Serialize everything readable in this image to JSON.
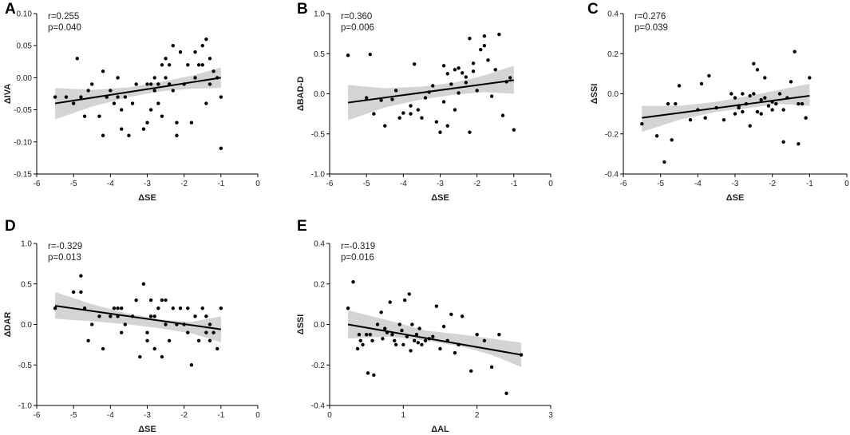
{
  "chart_data": [
    {
      "type": "scatter",
      "panel": "A",
      "xlabel": "ΔSE",
      "ylabel": "ΔIVA",
      "stats": [
        "r=0.255",
        "p=0.040"
      ],
      "xlim": [
        -6,
        0
      ],
      "ylim": [
        -0.15,
        0.1
      ],
      "xticks": [
        -6,
        -5,
        -4,
        -3,
        -2,
        -1,
        0
      ],
      "yticks": [
        -0.15,
        -0.1,
        -0.05,
        0.0,
        0.05,
        0.1
      ],
      "xtick_labels": [
        "-6",
        "-5",
        "-4",
        "-3",
        "-2",
        "-1",
        "0"
      ],
      "ytick_labels": [
        "-0.15",
        "-0.10",
        "-0.05",
        "0.00",
        "0.05",
        "0.10"
      ],
      "fit": {
        "x": [
          -5.5,
          -1.0
        ],
        "y": [
          -0.04,
          0.0
        ]
      },
      "ci": {
        "x": [
          -5.5,
          -4.5,
          -3.5,
          -2.6,
          -1.8,
          -1.0
        ],
        "lower": [
          -0.065,
          -0.045,
          -0.03,
          -0.021,
          -0.017,
          -0.016
        ],
        "upper": [
          -0.016,
          -0.019,
          -0.015,
          -0.006,
          0.003,
          0.016
        ]
      },
      "points": {
        "x": [
          -5.5,
          -5.2,
          -5.0,
          -4.9,
          -4.8,
          -4.7,
          -4.6,
          -4.5,
          -4.3,
          -4.2,
          -4.2,
          -4.1,
          -4.0,
          -3.9,
          -3.8,
          -3.8,
          -3.7,
          -3.7,
          -3.6,
          -3.5,
          -3.4,
          -3.3,
          -3.1,
          -3.0,
          -3.0,
          -2.9,
          -2.9,
          -2.8,
          -2.8,
          -2.7,
          -2.7,
          -2.6,
          -2.6,
          -2.5,
          -2.5,
          -2.4,
          -2.4,
          -2.3,
          -2.3,
          -2.2,
          -2.2,
          -2.1,
          -2.0,
          -1.9,
          -1.8,
          -1.7,
          -1.7,
          -1.6,
          -1.5,
          -1.5,
          -1.4,
          -1.4,
          -1.3,
          -1.3,
          -1.2,
          -1.1,
          -1.0,
          -1.0
        ],
        "y": [
          -0.03,
          -0.03,
          -0.04,
          0.03,
          -0.03,
          -0.06,
          -0.02,
          -0.01,
          -0.06,
          0.01,
          -0.09,
          -0.03,
          -0.02,
          -0.04,
          0.0,
          -0.03,
          -0.05,
          -0.08,
          -0.03,
          -0.09,
          -0.04,
          -0.01,
          -0.08,
          -0.01,
          -0.07,
          -0.05,
          -0.01,
          -0.02,
          0.0,
          -0.01,
          -0.04,
          0.02,
          -0.06,
          0.0,
          0.03,
          -0.01,
          0.02,
          0.05,
          -0.02,
          -0.07,
          -0.09,
          0.04,
          -0.01,
          0.02,
          -0.07,
          0.0,
          0.04,
          0.02,
          0.05,
          0.02,
          0.06,
          -0.04,
          0.03,
          -0.01,
          0.01,
          0.0,
          -0.03,
          -0.11
        ]
      }
    },
    {
      "type": "scatter",
      "panel": "B",
      "xlabel": "ΔSE",
      "ylabel": "ΔBAD-D",
      "stats": [
        "r=0.360",
        "p=0.006"
      ],
      "xlim": [
        -6,
        0
      ],
      "ylim": [
        -1.0,
        1.0
      ],
      "xticks": [
        -6,
        -5,
        -4,
        -3,
        -2,
        -1,
        0
      ],
      "yticks": [
        -1.0,
        -0.5,
        0.0,
        0.5,
        1.0
      ],
      "xtick_labels": [
        "-6",
        "-5",
        "-4",
        "-3",
        "-2",
        "-1",
        "0"
      ],
      "ytick_labels": [
        "-1.0",
        "-0.5",
        "0.0",
        "0.5",
        "1.0"
      ],
      "fit": {
        "x": [
          -5.5,
          -1.0
        ],
        "y": [
          -0.11,
          0.17
        ]
      },
      "ci": {
        "x": [
          -5.5,
          -4.5,
          -3.5,
          -2.6,
          -1.8,
          -1.0
        ],
        "lower": [
          -0.33,
          -0.17,
          -0.07,
          -0.01,
          0.02,
          0.0
        ],
        "upper": [
          0.11,
          0.07,
          0.09,
          0.14,
          0.23,
          0.35
        ]
      },
      "points": {
        "x": [
          -5.5,
          -5.0,
          -4.9,
          -4.8,
          -4.6,
          -4.5,
          -4.3,
          -4.2,
          -4.1,
          -4.0,
          -3.8,
          -3.8,
          -3.7,
          -3.6,
          -3.5,
          -3.4,
          -3.3,
          -3.2,
          -3.1,
          -3.0,
          -2.9,
          -2.9,
          -2.8,
          -2.8,
          -2.7,
          -2.6,
          -2.6,
          -2.5,
          -2.5,
          -2.4,
          -2.3,
          -2.3,
          -2.2,
          -2.2,
          -2.1,
          -2.1,
          -2.0,
          -1.9,
          -1.8,
          -1.8,
          -1.7,
          -1.6,
          -1.5,
          -1.4,
          -1.3,
          -1.2,
          -1.1,
          -1.0
        ],
        "y": [
          0.48,
          -0.05,
          0.49,
          -0.25,
          -0.08,
          -0.4,
          -0.07,
          0.04,
          -0.3,
          -0.24,
          -0.25,
          -0.15,
          0.37,
          -0.2,
          -0.3,
          -0.05,
          0.02,
          0.1,
          -0.35,
          -0.48,
          0.35,
          -0.1,
          0.25,
          -0.4,
          0.12,
          0.3,
          -0.2,
          0.01,
          0.32,
          0.26,
          0.14,
          0.21,
          0.69,
          -0.48,
          0.38,
          0.28,
          0.04,
          0.55,
          0.72,
          0.6,
          0.42,
          -0.03,
          0.3,
          0.74,
          -0.27,
          0.15,
          0.2,
          -0.45
        ]
      }
    },
    {
      "type": "scatter",
      "panel": "C",
      "xlabel": "ΔSE",
      "ylabel": "ΔSSI",
      "stats": [
        "r=0.276",
        "p=0.039"
      ],
      "xlim": [
        -6,
        0
      ],
      "ylim": [
        -0.4,
        0.4
      ],
      "xticks": [
        -6,
        -5,
        -4,
        -3,
        -2,
        -1,
        0
      ],
      "yticks": [
        -0.4,
        -0.2,
        0.0,
        0.2,
        0.4
      ],
      "xtick_labels": [
        "-6",
        "-5",
        "-4",
        "-3",
        "-2",
        "-1",
        "0"
      ],
      "ytick_labels": [
        "-0.4",
        "-0.2",
        "0.0",
        "0.2",
        "0.4"
      ],
      "fit": {
        "x": [
          -5.5,
          -1.0
        ],
        "y": [
          -0.12,
          -0.01
        ]
      },
      "ci": {
        "x": [
          -5.5,
          -4.5,
          -3.5,
          -2.6,
          -1.8,
          -1.0
        ],
        "lower": [
          -0.19,
          -0.13,
          -0.09,
          -0.07,
          -0.05,
          -0.06
        ],
        "upper": [
          -0.06,
          -0.06,
          -0.04,
          -0.01,
          0.02,
          0.05
        ]
      },
      "points": {
        "x": [
          -5.5,
          -5.1,
          -4.9,
          -4.8,
          -4.7,
          -4.6,
          -4.5,
          -4.2,
          -4.0,
          -3.9,
          -3.8,
          -3.7,
          -3.5,
          -3.3,
          -3.1,
          -3.0,
          -3.0,
          -2.9,
          -2.9,
          -2.8,
          -2.8,
          -2.7,
          -2.6,
          -2.6,
          -2.5,
          -2.5,
          -2.4,
          -2.4,
          -2.3,
          -2.3,
          -2.2,
          -2.2,
          -2.1,
          -2.0,
          -2.0,
          -1.9,
          -1.8,
          -1.7,
          -1.7,
          -1.6,
          -1.5,
          -1.4,
          -1.3,
          -1.3,
          -1.2,
          -1.1,
          -1.0
        ],
        "y": [
          -0.15,
          -0.21,
          -0.34,
          -0.05,
          -0.23,
          -0.05,
          0.04,
          -0.13,
          -0.08,
          0.05,
          -0.12,
          0.09,
          -0.07,
          -0.13,
          0.0,
          -0.02,
          -0.1,
          -0.06,
          -0.07,
          0.0,
          -0.09,
          -0.05,
          -0.01,
          -0.16,
          0.15,
          0.0,
          0.12,
          -0.09,
          -0.03,
          -0.1,
          -0.02,
          0.08,
          -0.06,
          -0.04,
          -0.08,
          -0.05,
          0.0,
          -0.24,
          -0.08,
          -0.02,
          0.06,
          0.21,
          -0.05,
          -0.25,
          -0.05,
          -0.12,
          0.08
        ]
      }
    },
    {
      "type": "scatter",
      "panel": "D",
      "xlabel": "ΔSE",
      "ylabel": "ΔDAR",
      "stats": [
        "r=-0.329",
        "p=0.013"
      ],
      "xlim": [
        -6,
        0
      ],
      "ylim": [
        -1.0,
        1.0
      ],
      "xticks": [
        -6,
        -5,
        -4,
        -3,
        -2,
        -1,
        0
      ],
      "yticks": [
        -1.0,
        -0.5,
        0.0,
        0.5,
        1.0
      ],
      "xtick_labels": [
        "-6",
        "-5",
        "-4",
        "-3",
        "-2",
        "-1",
        "0"
      ],
      "ytick_labels": [
        "-1.0",
        "-0.5",
        "0.0",
        "0.5",
        "1.0"
      ],
      "fit": {
        "x": [
          -5.5,
          -1.0
        ],
        "y": [
          0.23,
          -0.06
        ]
      },
      "ci": {
        "x": [
          -5.5,
          -4.5,
          -3.5,
          -2.6,
          -1.8,
          -1.0
        ],
        "lower": [
          0.07,
          0.04,
          0.0,
          -0.05,
          -0.11,
          -0.22
        ],
        "upper": [
          0.4,
          0.25,
          0.13,
          0.06,
          0.03,
          0.1
        ]
      },
      "points": {
        "x": [
          -5.5,
          -5.0,
          -4.8,
          -4.8,
          -4.7,
          -4.6,
          -4.5,
          -4.3,
          -4.2,
          -4.0,
          -3.9,
          -3.8,
          -3.8,
          -3.7,
          -3.7,
          -3.6,
          -3.4,
          -3.3,
          -3.2,
          -3.1,
          -3.0,
          -3.0,
          -2.9,
          -2.9,
          -2.8,
          -2.8,
          -2.7,
          -2.6,
          -2.6,
          -2.5,
          -2.5,
          -2.4,
          -2.3,
          -2.2,
          -2.1,
          -2.0,
          -1.9,
          -1.9,
          -1.8,
          -1.7,
          -1.6,
          -1.5,
          -1.4,
          -1.4,
          -1.3,
          -1.3,
          -1.2,
          -1.1,
          -1.0
        ],
        "y": [
          0.2,
          0.4,
          0.6,
          0.4,
          0.2,
          -0.2,
          0.0,
          0.1,
          -0.3,
          0.1,
          0.2,
          0.2,
          0.1,
          0.2,
          -0.1,
          0.0,
          0.1,
          0.3,
          -0.4,
          0.5,
          -0.1,
          -0.2,
          0.3,
          0.1,
          0.1,
          -0.3,
          0.2,
          0.3,
          -0.4,
          0.0,
          0.3,
          -0.2,
          0.2,
          0.0,
          0.2,
          0.0,
          0.2,
          -0.1,
          -0.5,
          0.1,
          -0.2,
          0.2,
          0.1,
          -0.1,
          -0.2,
          0.0,
          -0.1,
          -0.3,
          0.2
        ]
      }
    },
    {
      "type": "scatter",
      "panel": "E",
      "xlabel": "ΔAL",
      "ylabel": "ΔSSI",
      "stats": [
        "r=-0.319",
        "p=0.016"
      ],
      "xlim": [
        0,
        3
      ],
      "ylim": [
        -0.4,
        0.4
      ],
      "xticks": [
        0,
        1,
        2,
        3
      ],
      "yticks": [
        -0.4,
        -0.2,
        0.0,
        0.2,
        0.4
      ],
      "xtick_labels": [
        "0",
        "1",
        "2",
        "3"
      ],
      "ytick_labels": [
        "-0.4",
        "-0.2",
        "0.0",
        "0.2",
        "0.4"
      ],
      "fit": {
        "x": [
          0.25,
          2.6
        ],
        "y": [
          0.0,
          -0.15
        ]
      },
      "ci": {
        "x": [
          0.25,
          0.8,
          1.3,
          1.8,
          2.2,
          2.6
        ],
        "lower": [
          -0.07,
          -0.06,
          -0.08,
          -0.11,
          -0.15,
          -0.21
        ],
        "upper": [
          0.07,
          0.02,
          -0.03,
          -0.05,
          -0.07,
          -0.09
        ]
      },
      "points": {
        "x": [
          0.25,
          0.32,
          0.38,
          0.4,
          0.42,
          0.45,
          0.5,
          0.52,
          0.55,
          0.58,
          0.6,
          0.65,
          0.7,
          0.72,
          0.75,
          0.78,
          0.82,
          0.85,
          0.88,
          0.9,
          0.95,
          0.98,
          1.0,
          1.02,
          1.05,
          1.08,
          1.1,
          1.12,
          1.15,
          1.18,
          1.2,
          1.22,
          1.25,
          1.3,
          1.35,
          1.4,
          1.45,
          1.5,
          1.55,
          1.6,
          1.65,
          1.7,
          1.75,
          1.8,
          1.92,
          2.0,
          2.1,
          2.2,
          2.3,
          2.4,
          2.6
        ],
        "y": [
          0.08,
          0.21,
          -0.12,
          -0.05,
          -0.08,
          -0.1,
          -0.05,
          -0.24,
          -0.05,
          -0.08,
          -0.25,
          0.0,
          0.06,
          -0.07,
          -0.02,
          -0.04,
          0.11,
          -0.05,
          -0.08,
          -0.1,
          0.0,
          -0.03,
          -0.1,
          0.12,
          -0.06,
          0.15,
          -0.13,
          0.0,
          -0.08,
          -0.05,
          -0.09,
          -0.02,
          -0.1,
          -0.08,
          -0.07,
          -0.06,
          0.09,
          -0.12,
          -0.01,
          -0.08,
          0.05,
          -0.14,
          -0.1,
          0.04,
          -0.23,
          -0.05,
          -0.08,
          -0.21,
          -0.05,
          -0.34,
          -0.15
        ]
      }
    }
  ]
}
